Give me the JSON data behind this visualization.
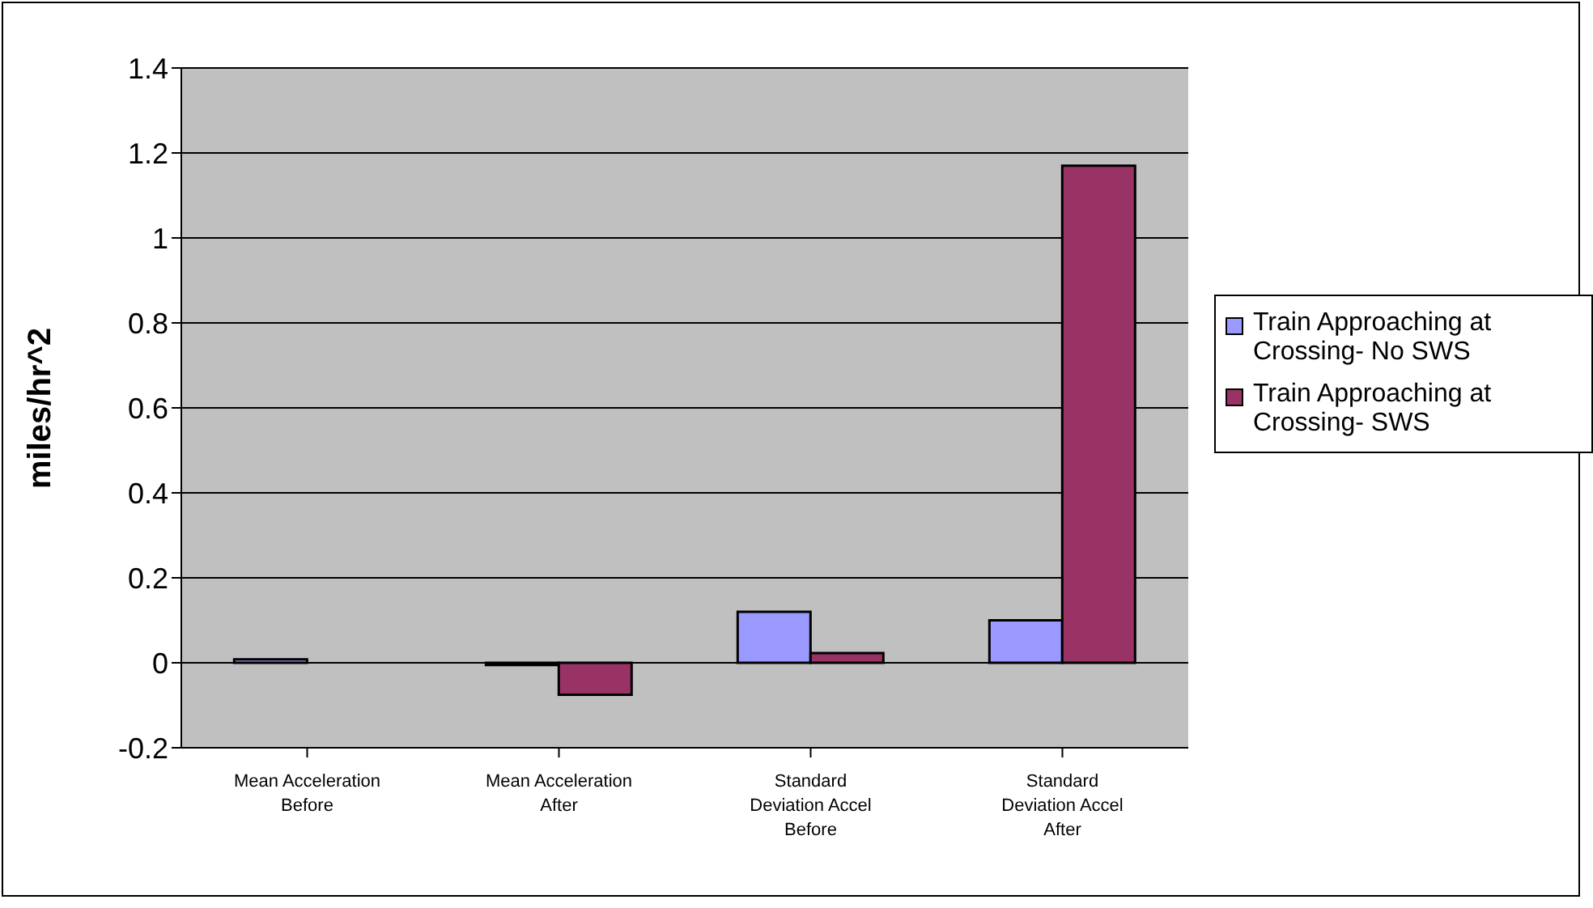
{
  "chart_data": {
    "type": "bar",
    "ylabel": "miles/hr^2",
    "categories": [
      "Mean Acceleration Before",
      "Mean Acceleration After",
      "Standard Deviation Accel Before",
      "Standard Deviation Accel After"
    ],
    "series": [
      {
        "name": "Train Approaching at Crossing- No SWS",
        "color": "#9999ff",
        "values": [
          0.008,
          -0.005,
          0.12,
          0.1
        ]
      },
      {
        "name": "Train Approaching at Crossing- SWS",
        "color": "#993366",
        "values": [
          0,
          -0.075,
          0.023,
          1.17
        ]
      }
    ],
    "ylim": [
      -0.2,
      1.4
    ],
    "yticks": [
      -0.2,
      0,
      0.2,
      0.4,
      0.6,
      0.8,
      1,
      1.2,
      1.4
    ],
    "grid": "y",
    "legend": "right"
  }
}
